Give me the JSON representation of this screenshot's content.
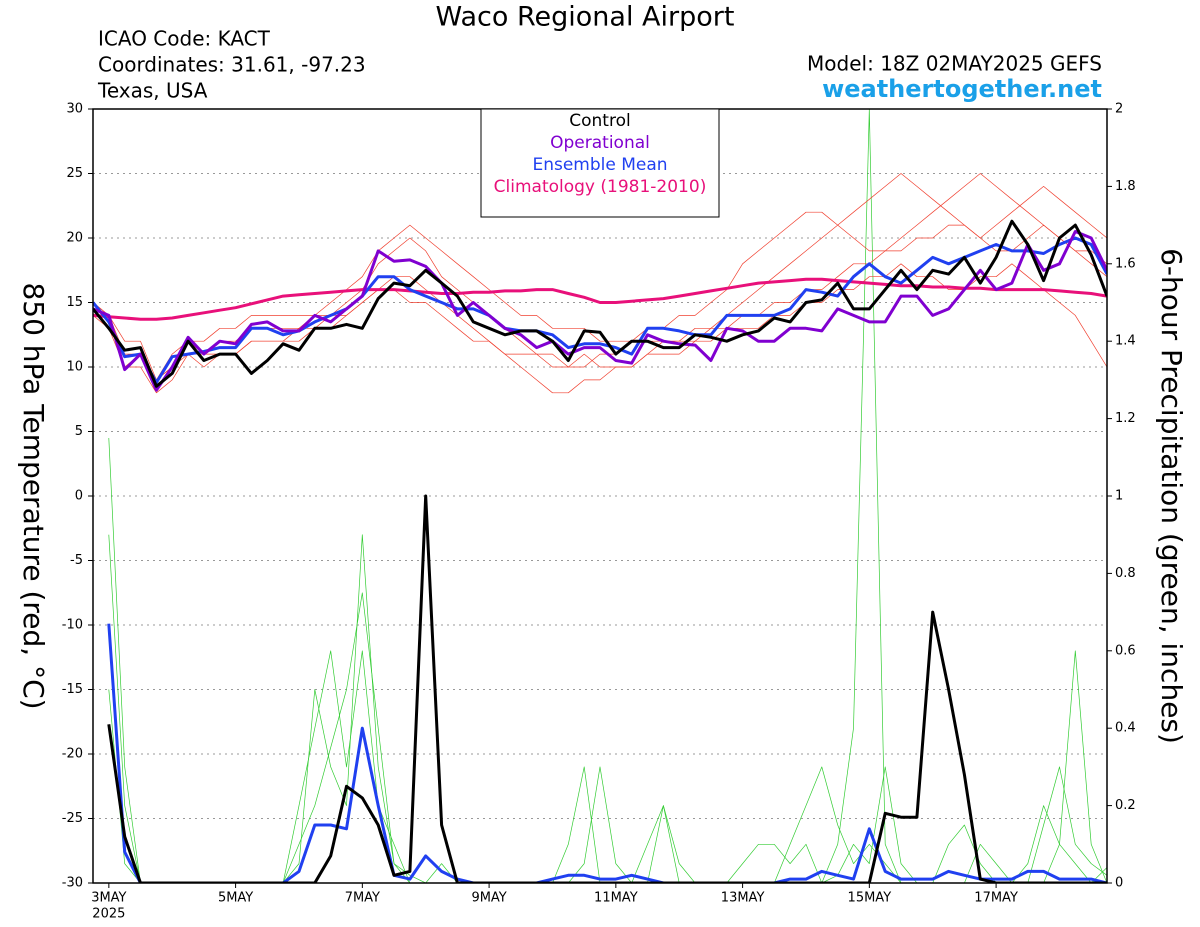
{
  "chart_data": {
    "type": "line",
    "title": "Waco Regional Airport",
    "info_left": [
      "ICAO Code: KACT",
      "Coordinates: 31.61, -97.23",
      "Texas, USA"
    ],
    "model": "Model: 18Z 02MAY2025 GEFS",
    "site": "weathertogether.net",
    "ylabel": "850 hPa Temperature (red, °C)",
    "y2label": "6-hour Precipitation (green, inches)",
    "year_label": "2025",
    "grid": true,
    "legend": "top-center",
    "categories": [
      null,
      "3MAY",
      null,
      null,
      null,
      null,
      null,
      null,
      null,
      "5MAY",
      null,
      null,
      null,
      null,
      null,
      null,
      null,
      "7MAY",
      null,
      null,
      null,
      null,
      null,
      null,
      null,
      "9MAY",
      null,
      null,
      null,
      null,
      null,
      null,
      null,
      "11MAY",
      null,
      null,
      null,
      null,
      null,
      null,
      null,
      "13MAY",
      null,
      null,
      null,
      null,
      null,
      null,
      null,
      "15MAY",
      null,
      null,
      null,
      null,
      null,
      null,
      null,
      "17MAY",
      null,
      null,
      null,
      null,
      null,
      null,
      null
    ],
    "ylim": [
      -30,
      30
    ],
    "yticks": [
      -30,
      -25,
      -20,
      -15,
      -10,
      -5,
      0,
      5,
      10,
      15,
      20,
      25,
      30
    ],
    "y2lim": [
      0,
      2
    ],
    "y2ticks": [
      0,
      0.2,
      0.4,
      0.6,
      0.8,
      1,
      1.2,
      1.4,
      1.6,
      1.8,
      2
    ],
    "series": [
      {
        "color": "#33cc33",
        "axis": "y2",
        "values": [
          null,
          0.9,
          0.2,
          0,
          0,
          0,
          0,
          0,
          0,
          0,
          0,
          0,
          0,
          0.05,
          0.5,
          0.3,
          0.2,
          0.9,
          0.3,
          0.05,
          0,
          0,
          0,
          0,
          0,
          0,
          0,
          0,
          0,
          0,
          0,
          0.05,
          0.3,
          0.05,
          0,
          0,
          0,
          0,
          0,
          0,
          0,
          0,
          0,
          0,
          0,
          0,
          0,
          0.1,
          0.4,
          2.0,
          0.1,
          0,
          0,
          0,
          0,
          0,
          0,
          0,
          0,
          0,
          0,
          0.1,
          0.6,
          0.1,
          0
        ]
      },
      {
        "color": "#33cc33",
        "axis": "y2",
        "values": [
          null,
          0.5,
          0.05,
          0,
          0,
          0,
          0,
          0,
          0,
          0,
          0,
          0,
          0,
          0.2,
          0.4,
          0.6,
          0.3,
          0.6,
          0.2,
          0.1,
          0,
          0,
          0.05,
          0,
          0,
          0,
          0,
          0,
          0,
          0,
          0.1,
          0.3,
          0,
          0,
          0,
          0.1,
          0.2,
          0,
          0,
          0,
          0,
          0,
          0,
          0,
          0.1,
          0.2,
          0.3,
          0.15,
          0.05,
          0.1,
          0.05,
          0,
          0,
          0,
          0,
          0,
          0.1,
          0.05,
          0,
          0,
          0.15,
          0.3,
          0.1,
          0.05,
          0.02
        ]
      },
      {
        "color": "#33cc33",
        "axis": "y2",
        "values": [
          null,
          1.15,
          0.3,
          0,
          0,
          0,
          0,
          0,
          0,
          0,
          0,
          0,
          0,
          0.1,
          0.2,
          0.35,
          0.5,
          0.75,
          0.4,
          0.05,
          0.02,
          0,
          0,
          0,
          0,
          0,
          0,
          0,
          0,
          0,
          0,
          0,
          0,
          0,
          0,
          0,
          0.2,
          0.05,
          0,
          0,
          0,
          0.05,
          0.1,
          0.1,
          0.05,
          0.1,
          0,
          0.02,
          0.1,
          0.05,
          0.3,
          0.05,
          0,
          0,
          0.1,
          0.15,
          0.05,
          0,
          0,
          0.05,
          0.2,
          0.1,
          0.05,
          0,
          0.04
        ]
      },
      {
        "color": "#2040f0",
        "axis": "y2",
        "values": [
          null,
          0.67,
          0.08,
          0,
          0,
          0,
          0,
          0,
          0,
          0,
          0,
          0,
          0,
          0.03,
          0.15,
          0.15,
          0.14,
          0.4,
          0.2,
          0.02,
          0.01,
          0.07,
          0.03,
          0.01,
          0,
          0,
          0,
          0,
          0,
          0.01,
          0.02,
          0.02,
          0.01,
          0.01,
          0.02,
          0.01,
          0,
          0,
          0,
          0,
          0,
          0,
          0,
          0,
          0.01,
          0.01,
          0.03,
          0.02,
          0.01,
          0.14,
          0.03,
          0.01,
          0.01,
          0.01,
          0.03,
          0.02,
          0.01,
          0.01,
          0.01,
          0.03,
          0.03,
          0.01,
          0.01,
          0.01,
          0
        ]
      },
      {
        "color": "#000000",
        "axis": "y2",
        "values": [
          null,
          0.41,
          0.12,
          0,
          0,
          0,
          0,
          0,
          0,
          0,
          0,
          0,
          0,
          0,
          0,
          0.07,
          0.25,
          0.22,
          0.15,
          0.02,
          0.03,
          1.0,
          0.15,
          0,
          0,
          0,
          0,
          0,
          0,
          0,
          0,
          0,
          0,
          0,
          0,
          0,
          0,
          0,
          0,
          0,
          0,
          0,
          0,
          0,
          0,
          0,
          0,
          0,
          0,
          0,
          0.18,
          0.17,
          0.17,
          0.7,
          0.5,
          0.28,
          0.01,
          0,
          0,
          0,
          0,
          0,
          0,
          0,
          0
        ]
      },
      {
        "color": "#f04030",
        "values": [
          15,
          14,
          11,
          11,
          9,
          10,
          12,
          11,
          12,
          12,
          13,
          13,
          13,
          13,
          14,
          14,
          15,
          16,
          18,
          19,
          20,
          19,
          17,
          16,
          15,
          14,
          13,
          12,
          11,
          11,
          10,
          11,
          10,
          10,
          10,
          11,
          12,
          12,
          12,
          13,
          14,
          15,
          16,
          17,
          18,
          19,
          20,
          21,
          22,
          23,
          24,
          25,
          24,
          23,
          22,
          21,
          20,
          21,
          22,
          23,
          24,
          23,
          22,
          21,
          20
        ]
      },
      {
        "color": "#f04030",
        "values": [
          14,
          13,
          10,
          10,
          8,
          9,
          11,
          11,
          11,
          11,
          12,
          12,
          12,
          13,
          13,
          13,
          14,
          15,
          16,
          17,
          17,
          16,
          15,
          14,
          13,
          12,
          11,
          10,
          9,
          8,
          8,
          9,
          9,
          10,
          10,
          11,
          11,
          11,
          12,
          12,
          13,
          13,
          13,
          14,
          14,
          15,
          15,
          16,
          16,
          17,
          17,
          18,
          17,
          17,
          16,
          16,
          17,
          17,
          18,
          17,
          16,
          15,
          14,
          12,
          10
        ]
      },
      {
        "color": "#f04030",
        "values": [
          15,
          14,
          12,
          12,
          9,
          11,
          12,
          12,
          13,
          13,
          14,
          14,
          14,
          14,
          14,
          15,
          16,
          17,
          19,
          20,
          21,
          20,
          19,
          18,
          17,
          16,
          15,
          14,
          14,
          13,
          13,
          13,
          12,
          12,
          12,
          13,
          13,
          14,
          14,
          15,
          16,
          18,
          19,
          20,
          21,
          22,
          22,
          21,
          20,
          19,
          19,
          20,
          21,
          22,
          23,
          24,
          25,
          24,
          23,
          22,
          21,
          20,
          19,
          19,
          18
        ]
      },
      {
        "color": "#f04030",
        "values": [
          14,
          14,
          10,
          11,
          9,
          10,
          11,
          10,
          11,
          11,
          12,
          12,
          12,
          12,
          13,
          14,
          14,
          15,
          16,
          16,
          15,
          15,
          14,
          13,
          12,
          12,
          11,
          11,
          11,
          10,
          10,
          10,
          11,
          11,
          12,
          12,
          12,
          12,
          13,
          13,
          13,
          14,
          14,
          15,
          15,
          16,
          16,
          17,
          18,
          18,
          19,
          19,
          20,
          20,
          21,
          21,
          20,
          19,
          19,
          20,
          21,
          20,
          19,
          18,
          17
        ]
      },
      {
        "name": "Climatology (1981-2010)",
        "color": "#e8107a",
        "values": [
          14,
          13.9,
          13.8,
          13.7,
          13.7,
          13.8,
          14,
          14.2,
          14.4,
          14.6,
          14.9,
          15.2,
          15.5,
          15.6,
          15.7,
          15.8,
          15.9,
          16,
          16,
          16,
          15.9,
          15.8,
          15.7,
          15.7,
          15.8,
          15.8,
          15.9,
          15.9,
          16,
          16,
          15.7,
          15.4,
          15,
          15,
          15.1,
          15.2,
          15.3,
          15.5,
          15.7,
          15.9,
          16.1,
          16.3,
          16.5,
          16.6,
          16.7,
          16.8,
          16.8,
          16.7,
          16.6,
          16.5,
          16.4,
          16.3,
          16.3,
          16.2,
          16.2,
          16.1,
          16.1,
          16,
          16,
          16,
          16,
          15.9,
          15.8,
          15.7,
          15.5
        ]
      },
      {
        "name": "Ensemble Mean",
        "color": "#2040f0",
        "values": [
          15,
          13.5,
          10.8,
          11,
          8.8,
          10.8,
          11,
          11.2,
          11.5,
          11.5,
          13,
          13,
          12.5,
          12.8,
          13.5,
          14,
          14.5,
          15.5,
          17,
          17,
          16,
          15.5,
          15,
          14.5,
          14.5,
          14,
          13,
          12.8,
          12.8,
          12.5,
          11.5,
          11.8,
          11.8,
          11.5,
          11,
          13,
          13,
          12.8,
          12.5,
          12.5,
          14,
          14,
          14,
          14,
          14.5,
          16,
          15.8,
          15.5,
          17,
          18,
          17,
          16.5,
          17.5,
          18.5,
          18,
          18.5,
          19,
          19.5,
          19,
          19,
          18.8,
          19.5,
          20,
          19.5,
          17.2
        ]
      },
      {
        "name": "Operational",
        "color": "#8000d0",
        "values": [
          14.5,
          14,
          9.8,
          11,
          8.2,
          10,
          12.3,
          11,
          12,
          11.8,
          13.3,
          13.5,
          12.8,
          12.8,
          14,
          13.5,
          14.5,
          15.5,
          19,
          18.2,
          18.3,
          17.8,
          16.5,
          14,
          15,
          14,
          13,
          12.5,
          11.5,
          12,
          11,
          11.5,
          11.5,
          10.5,
          10.3,
          12.5,
          12,
          11.8,
          11.7,
          10.5,
          13,
          12.8,
          12,
          12,
          13,
          13,
          12.8,
          14.5,
          14,
          13.5,
          13.5,
          15.5,
          15.5,
          14,
          14.5,
          16,
          17.5,
          16,
          16.5,
          19.5,
          17.5,
          18,
          20.5,
          20,
          17.5
        ]
      },
      {
        "name": "Control",
        "color": "#000000",
        "values": [
          14.5,
          13,
          11.3,
          11.5,
          8.5,
          9.5,
          12,
          10.5,
          11,
          11,
          9.5,
          10.5,
          11.8,
          11.3,
          13,
          13,
          13.3,
          13,
          15.3,
          16.5,
          16.3,
          17.5,
          16.5,
          15.5,
          13.5,
          13,
          12.5,
          12.8,
          12.8,
          12,
          10.5,
          12.8,
          12.7,
          11,
          12,
          12,
          11.5,
          11.5,
          12.5,
          12.3,
          12,
          12.5,
          12.8,
          13.8,
          13.5,
          15,
          15.2,
          16.5,
          14.5,
          14.5,
          16,
          17.5,
          16,
          17.5,
          17.2,
          18.5,
          16.5,
          18.5,
          21.3,
          19.5,
          16.7,
          20,
          21,
          18.7,
          15.5
        ]
      }
    ]
  }
}
